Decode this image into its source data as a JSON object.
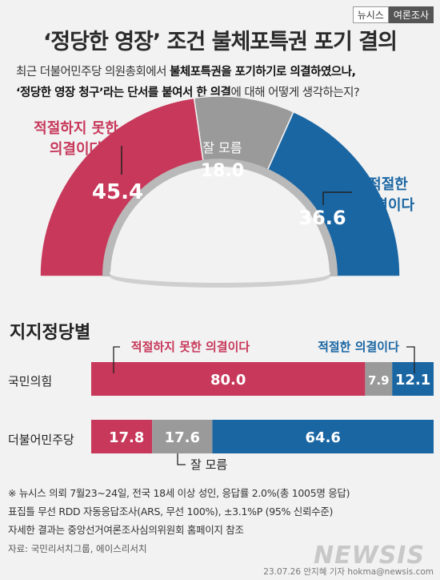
{
  "brand": {
    "left": "뉴시스",
    "right": "여론조사"
  },
  "title": "‘정당한 영장’ 조건 불체포특권 포기 결의",
  "question": {
    "line1_a": "최근 더불어민주당 의원총회에서 ",
    "line1_b": "불체포특권을 포기하기로 의결하였으나,",
    "line2_a": "‘정당한 영장 청구’라는 단서를 붙여서 한 의결",
    "line2_b": "에 대해 어떻게 생각하는지?"
  },
  "colors": {
    "red": "#c7385a",
    "gray": "#9a9a9a",
    "blue": "#1a66a3",
    "arc_gray": "#b9b9b9"
  },
  "chart_data": [
    {
      "type": "pie",
      "categories": [
        "적절하지 못한 의결이다",
        "잘 모름",
        "적절한 의결이다"
      ],
      "values": [
        45.4,
        18.0,
        36.6
      ],
      "value_labels": [
        "45.4",
        "18.0",
        "36.6"
      ],
      "label_lines": [
        [
          "적절하지 못한",
          "의결이다"
        ],
        [
          "잘 모름"
        ],
        [
          "적절한",
          "의결이다"
        ]
      ],
      "colors": [
        "#c7385a",
        "#9a9a9a",
        "#1a66a3"
      ]
    },
    {
      "type": "bar",
      "title": "지지정당별",
      "categories": [
        "국민의힘",
        "더불어민주당"
      ],
      "series": [
        {
          "name": "적절하지 못한 의결이다",
          "values": [
            80.0,
            17.8
          ],
          "labels": [
            "80.0",
            "17.8"
          ],
          "color": "#c7385a"
        },
        {
          "name": "잘 모름",
          "values": [
            7.9,
            17.6
          ],
          "labels": [
            "7.9",
            "17.6"
          ],
          "color": "#9a9a9a"
        },
        {
          "name": "적절한 의결이다",
          "values": [
            12.1,
            64.6
          ],
          "labels": [
            "12.1",
            "64.6"
          ],
          "color": "#1a66a3"
        }
      ]
    }
  ],
  "footnotes": [
    "※ 뉴시스 의뢰 7월23~24일, 전국 18세 이상 성인, 응답률 2.0%(총 1005명 응답)",
    "표집틀 무선 RDD 자동응답조사(ARS, 무선 100%), ±3.1%P (95% 신뢰수준)",
    "자세한 결과는 중앙선거여론조사심의위원회 홈페이지 참조"
  ],
  "source": "자료: 국민리서치그룹, 에이스리서치",
  "byline": "23.07.26 안지혜 기자  hokma@newsis.com",
  "watermark": "NEWSIS"
}
